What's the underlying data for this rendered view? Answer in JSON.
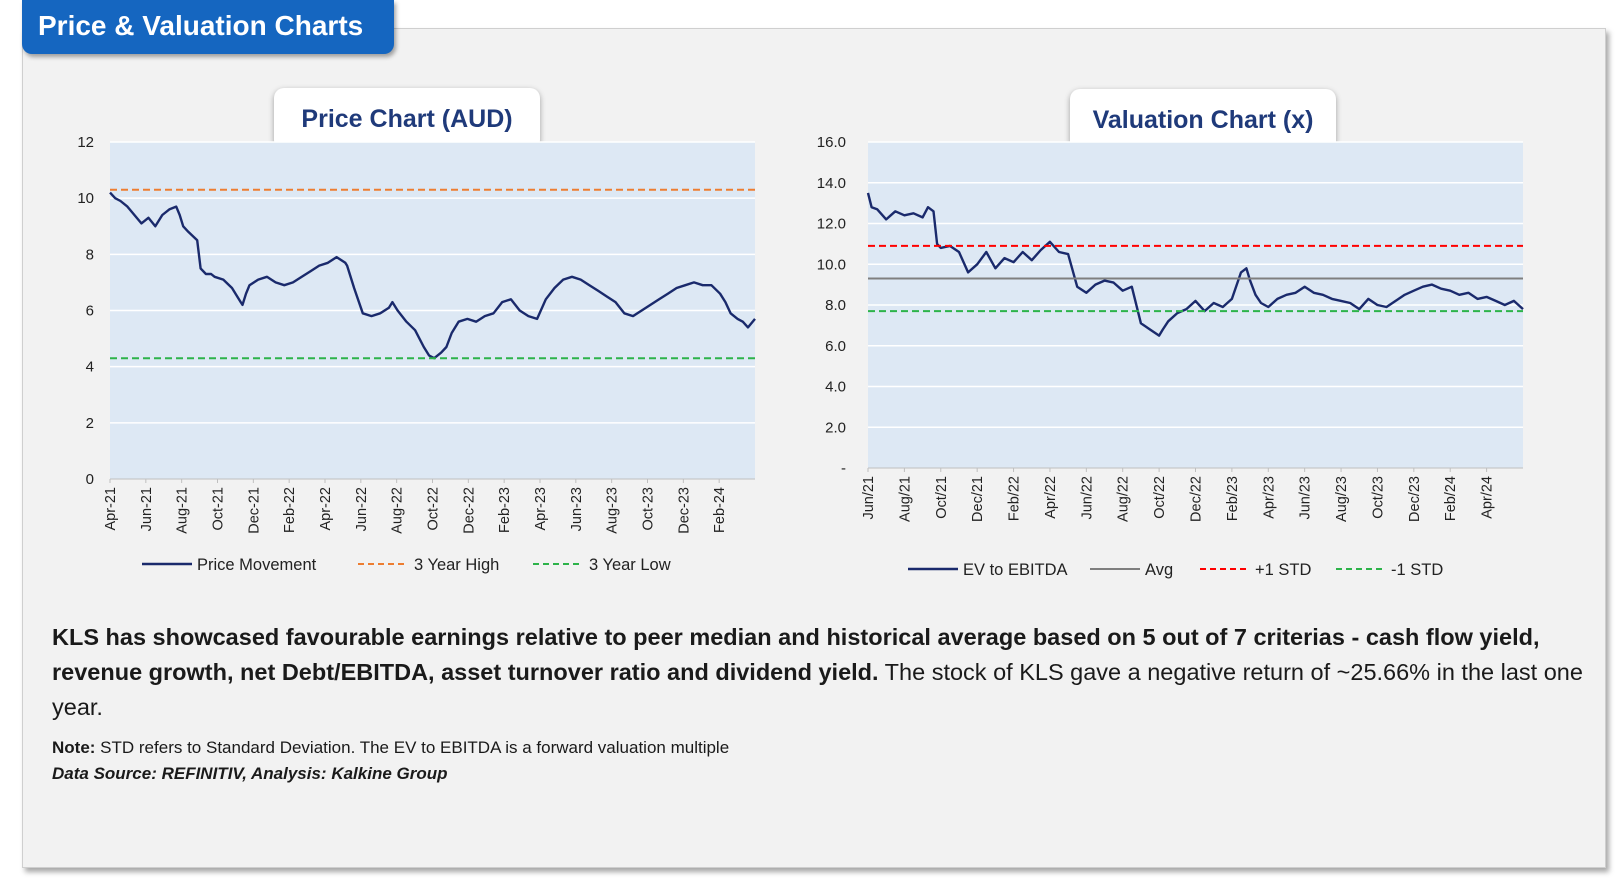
{
  "section_title": "Price & Valuation Charts",
  "colors": {
    "navy": "#1a2a6c",
    "orange": "#ed7d31",
    "green": "#2db34a",
    "red": "#ff0000",
    "gray": "#7f7f7f",
    "plot_bg": "#dde8f4",
    "tab_blue": "#1566c0",
    "title_text": "#1f3a7a"
  },
  "chart_data": [
    {
      "type": "line",
      "title": "Price Chart (AUD)",
      "xlabel": "",
      "ylabel": "",
      "ylim": [
        0,
        12
      ],
      "yticks": [
        "0",
        "2",
        "4",
        "6",
        "8",
        "10",
        "12"
      ],
      "xlim": [
        0,
        37
      ],
      "xticks": [
        "Apr-21",
        "Jun-21",
        "Aug-21",
        "Oct-21",
        "Dec-21",
        "Feb-22",
        "Apr-22",
        "Jun-22",
        "Aug-22",
        "Oct-22",
        "Dec-22",
        "Feb-23",
        "Apr-23",
        "Jun-23",
        "Aug-23",
        "Oct-23",
        "Dec-23",
        "Feb-24"
      ],
      "grid": true,
      "legend": "bottom",
      "series": [
        {
          "name": "Price Movement",
          "style": "solid",
          "color": "#1a2a6c",
          "x": [
            0,
            0.3,
            0.6,
            1,
            1.4,
            1.8,
            2.2,
            2.6,
            3,
            3.4,
            3.8,
            4,
            4.2,
            4.5,
            5,
            5.2,
            5.5,
            5.8,
            6,
            6.5,
            7,
            7.5,
            7.6,
            7.8,
            8,
            8.5,
            9,
            9.5,
            10,
            10.5,
            11,
            11.5,
            12,
            12.5,
            13,
            13.5,
            13.6,
            14,
            14.5,
            15,
            15.5,
            16,
            16.2,
            16.5,
            17,
            17.5,
            18,
            18.3,
            18.6,
            19,
            19.3,
            19.6,
            20,
            20.5,
            21,
            21.5,
            22,
            22.5,
            23,
            23.5,
            24,
            24.5,
            25,
            25.5,
            26,
            26.5,
            27,
            27.5,
            28,
            28.5,
            29,
            29.5,
            30,
            30.5,
            31,
            31.5,
            32,
            32.5,
            33,
            33.5,
            34,
            34.5,
            35,
            35.3,
            35.6,
            36,
            36.3,
            36.6,
            37
          ],
          "y": [
            10.2,
            10,
            9.9,
            9.7,
            9.4,
            9.1,
            9.3,
            9.0,
            9.4,
            9.6,
            9.7,
            9.4,
            9.0,
            8.8,
            8.5,
            7.5,
            7.3,
            7.3,
            7.2,
            7.1,
            6.8,
            6.3,
            6.2,
            6.6,
            6.9,
            7.1,
            7.2,
            7.0,
            6.9,
            7.0,
            7.2,
            7.4,
            7.6,
            7.7,
            7.9,
            7.7,
            7.6,
            6.8,
            5.9,
            5.8,
            5.9,
            6.1,
            6.3,
            6.0,
            5.6,
            5.3,
            4.7,
            4.4,
            4.3,
            4.5,
            4.7,
            5.2,
            5.6,
            5.7,
            5.6,
            5.8,
            5.9,
            6.3,
            6.4,
            6.0,
            5.8,
            5.7,
            6.4,
            6.8,
            7.1,
            7.2,
            7.1,
            6.9,
            6.7,
            6.5,
            6.3,
            5.9,
            5.8,
            6.0,
            6.2,
            6.4,
            6.6,
            6.8,
            6.9,
            7.0,
            6.9,
            6.9,
            6.6,
            6.3,
            5.9,
            5.7,
            5.6,
            5.4,
            5.7
          ]
        },
        {
          "name": "3 Year High",
          "style": "dashed",
          "color": "#ed7d31",
          "x": [
            0,
            37
          ],
          "y": [
            10.3,
            10.3
          ]
        },
        {
          "name": "3 Year Low",
          "style": "dashed",
          "color": "#2db34a",
          "x": [
            0,
            37
          ],
          "y": [
            4.3,
            4.3
          ]
        }
      ]
    },
    {
      "type": "line",
      "title": "Valuation Chart (x)",
      "xlabel": "",
      "ylabel": "",
      "ylim": [
        0,
        16
      ],
      "yticks": [
        "-",
        "2.0",
        "4.0",
        "6.0",
        "8.0",
        "10.0",
        "12.0",
        "14.0",
        "16.0"
      ],
      "xlim": [
        0,
        36
      ],
      "xticks": [
        "Jun/21",
        "Aug/21",
        "Oct/21",
        "Dec/21",
        "Feb/22",
        "Apr/22",
        "Jun/22",
        "Aug/22",
        "Oct/22",
        "Dec/22",
        "Feb/23",
        "Apr/23",
        "Jun/23",
        "Aug/23",
        "Oct/23",
        "Dec/23",
        "Feb/24",
        "Apr/24"
      ],
      "grid": true,
      "legend": "bottom",
      "series": [
        {
          "name": "EV to EBITDA",
          "style": "solid",
          "color": "#1a2a6c",
          "x": [
            0,
            0.2,
            0.5,
            1,
            1.5,
            2,
            2.5,
            3,
            3.3,
            3.6,
            3.8,
            4,
            4.5,
            5,
            5.5,
            6,
            6.5,
            7,
            7.5,
            8,
            8.5,
            9,
            9.5,
            10,
            10.5,
            11,
            11.5,
            12,
            12.5,
            13,
            13.5,
            14,
            14.5,
            15,
            15.5,
            16,
            16.2,
            16.5,
            17,
            17.5,
            18,
            18.5,
            19,
            19.5,
            20,
            20.5,
            20.8,
            21,
            21.3,
            21.6,
            22,
            22.5,
            23,
            23.5,
            24,
            24.5,
            25,
            25.5,
            26,
            26.5,
            27,
            27.5,
            28,
            28.5,
            29,
            29.5,
            30,
            30.5,
            31,
            31.5,
            32,
            32.5,
            33,
            33.5,
            34,
            34.5,
            35,
            35.5,
            36
          ],
          "y": [
            13.5,
            12.8,
            12.7,
            12.2,
            12.6,
            12.4,
            12.5,
            12.3,
            12.8,
            12.6,
            11.0,
            10.8,
            10.9,
            10.6,
            9.6,
            10.0,
            10.6,
            9.8,
            10.3,
            10.1,
            10.6,
            10.2,
            10.7,
            11.1,
            10.6,
            10.5,
            8.9,
            8.6,
            9.0,
            9.2,
            9.1,
            8.7,
            8.9,
            7.1,
            6.8,
            6.5,
            6.8,
            7.2,
            7.6,
            7.8,
            8.2,
            7.7,
            8.1,
            7.9,
            8.3,
            9.6,
            9.8,
            9.2,
            8.5,
            8.1,
            7.9,
            8.3,
            8.5,
            8.6,
            8.9,
            8.6,
            8.5,
            8.3,
            8.2,
            8.1,
            7.8,
            8.3,
            8.0,
            7.9,
            8.2,
            8.5,
            8.7,
            8.9,
            9.0,
            8.8,
            8.7,
            8.5,
            8.6,
            8.3,
            8.4,
            8.2,
            8.0,
            8.2,
            7.8
          ]
        },
        {
          "name": "Avg",
          "style": "solid",
          "color": "#7f7f7f",
          "x": [
            0,
            36
          ],
          "y": [
            9.3,
            9.3
          ]
        },
        {
          "name": "+1 STD",
          "style": "dashed",
          "color": "#ff0000",
          "x": [
            0,
            36
          ],
          "y": [
            10.9,
            10.9
          ]
        },
        {
          "name": "-1 STD",
          "style": "dashed",
          "color": "#2db34a",
          "x": [
            0,
            36
          ],
          "y": [
            7.7,
            7.7
          ]
        }
      ]
    }
  ],
  "summary": {
    "bold": "KLS has showcased favourable earnings relative to peer median and historical average based on 5 out of 7 criterias - cash flow yield, revenue growth, net Debt/EBITDA, asset turnover ratio and dividend yield.",
    "rest": " The stock of KLS gave a negative return of ~25.66% in the last one year."
  },
  "note": {
    "label": "Note:",
    "text": " STD refers to Standard Deviation. The EV to EBITDA is a forward valuation multiple"
  },
  "source": "Data Source: REFINITIV, Analysis: Kalkine Group"
}
